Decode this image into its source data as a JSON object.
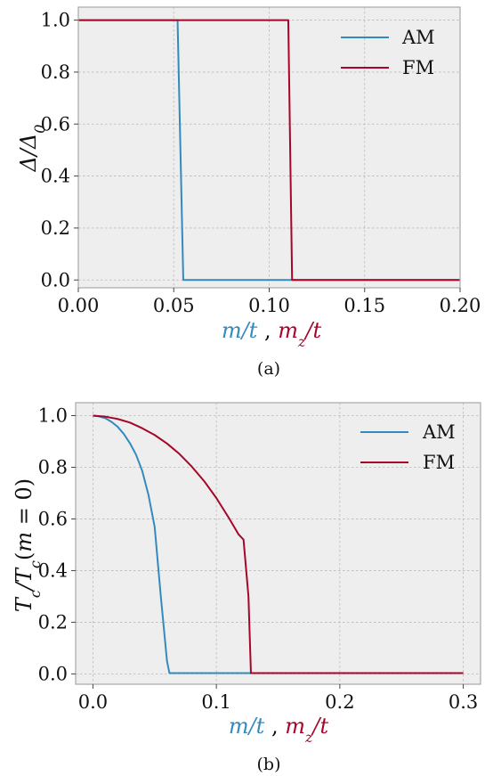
{
  "colors": {
    "AM": "#348ABD",
    "FM": "#A60628",
    "text": "#111111"
  },
  "chart_data": [
    {
      "type": "line",
      "panel_label": "(a)",
      "ylabel": "Δ/Δ0",
      "xlabel_parts": [
        {
          "text": "m/t",
          "color": "#348ABD"
        },
        {
          "text": " , ",
          "color": "#111111"
        },
        {
          "text": "mz/t",
          "color": "#A60628"
        }
      ],
      "xlim": [
        0,
        0.2
      ],
      "ylim": [
        -0.03,
        1.05
      ],
      "xticks": [
        0,
        0.05,
        0.1,
        0.15,
        0.2
      ],
      "xtick_labels": [
        "0.00",
        "0.05",
        "0.10",
        "0.15",
        "0.20"
      ],
      "yticks": [
        0,
        0.2,
        0.4,
        0.6,
        0.8,
        1.0
      ],
      "ytick_labels": [
        "0.0",
        "0.2",
        "0.4",
        "0.6",
        "0.8",
        "1.0"
      ],
      "grid": true,
      "legend": "top-right",
      "series": [
        {
          "name": "AM",
          "color": "#348ABD",
          "x": [
            0,
            0.052,
            0.055,
            0.2
          ],
          "y": [
            1,
            1,
            0,
            0
          ]
        },
        {
          "name": "FM",
          "color": "#A60628",
          "x": [
            0,
            0.11,
            0.112,
            0.2
          ],
          "y": [
            1,
            1,
            0,
            0
          ]
        }
      ]
    },
    {
      "type": "line",
      "panel_label": "(b)",
      "ylabel": "Tc/Tc(m = 0)",
      "xlabel_parts": [
        {
          "text": "m/t",
          "color": "#348ABD"
        },
        {
          "text": " , ",
          "color": "#111111"
        },
        {
          "text": "mz/t",
          "color": "#A60628"
        }
      ],
      "xlim": [
        -0.014,
        0.314
      ],
      "ylim": [
        -0.04,
        1.05
      ],
      "xticks": [
        0,
        0.1,
        0.2,
        0.3
      ],
      "xtick_labels": [
        "0.0",
        "0.1",
        "0.2",
        "0.3"
      ],
      "yticks": [
        0,
        0.2,
        0.4,
        0.6,
        0.8,
        1.0
      ],
      "ytick_labels": [
        "0.0",
        "0.2",
        "0.4",
        "0.6",
        "0.8",
        "1.0"
      ],
      "grid": true,
      "legend": "top-right",
      "series": [
        {
          "name": "AM",
          "color": "#348ABD",
          "x": [
            0,
            0.005,
            0.01,
            0.015,
            0.02,
            0.025,
            0.03,
            0.035,
            0.04,
            0.045,
            0.05,
            0.055,
            0.06,
            0.062,
            0.3
          ],
          "y": [
            1.0,
            0.997,
            0.99,
            0.976,
            0.957,
            0.929,
            0.893,
            0.848,
            0.785,
            0.693,
            0.57,
            0.3,
            0.05,
            0.003,
            0.003
          ]
        },
        {
          "name": "FM",
          "color": "#A60628",
          "x": [
            0,
            0.01,
            0.02,
            0.03,
            0.04,
            0.05,
            0.06,
            0.07,
            0.08,
            0.09,
            0.1,
            0.11,
            0.118,
            0.122,
            0.126,
            0.128,
            0.3
          ],
          "y": [
            1.0,
            0.996,
            0.987,
            0.973,
            0.951,
            0.925,
            0.892,
            0.852,
            0.803,
            0.747,
            0.681,
            0.605,
            0.54,
            0.52,
            0.3,
            0.003,
            0.003
          ]
        }
      ]
    }
  ]
}
